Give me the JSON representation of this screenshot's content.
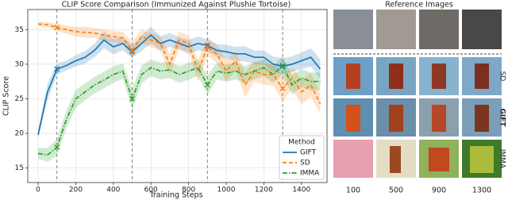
{
  "chart_data": {
    "type": "line",
    "title": "CLIP Score Comparison (Immunized Against Plushie Tortoise)",
    "x_label": "Training Steps",
    "y_label": "CLIP Score",
    "x": [
      0,
      50,
      100,
      150,
      200,
      250,
      300,
      350,
      400,
      450,
      500,
      550,
      600,
      650,
      700,
      750,
      800,
      850,
      900,
      950,
      1000,
      1050,
      1100,
      1150,
      1200,
      1250,
      1300,
      1350,
      1400,
      1450,
      1500
    ],
    "series": [
      {
        "name": "GIFT",
        "color": "#1f77b4",
        "dash": "solid",
        "values": [
          19.8,
          26,
          29.3,
          29.8,
          30.5,
          31,
          32,
          33.5,
          32.5,
          33,
          31.8,
          33,
          34.2,
          33,
          33.5,
          33,
          32.5,
          33,
          32.7,
          32,
          31.8,
          31.5,
          31.5,
          31,
          31,
          30,
          29.7,
          30,
          30.5,
          31,
          29.3
        ],
        "errors": [
          0.6,
          1.2,
          0.8,
          0.7,
          0.8,
          0.9,
          1.0,
          1.2,
          1.1,
          1.0,
          0.9,
          1.1,
          1.2,
          1.0,
          1.0,
          0.9,
          1.0,
          1.0,
          0.9,
          0.9,
          1.0,
          1.0,
          1.1,
          1.0,
          1.0,
          1.1,
          1.2,
          1.1,
          1.2,
          1.3,
          1.4
        ]
      },
      {
        "name": "SD",
        "color": "#ff7f0e",
        "dash": "dashed",
        "values": [
          35.8,
          35.7,
          35.3,
          35,
          34.7,
          34.6,
          34.5,
          34.2,
          34,
          33.8,
          32,
          34,
          33.5,
          33,
          30,
          33.5,
          33,
          29,
          32.5,
          31.5,
          29,
          30.5,
          27,
          29,
          28.5,
          28.5,
          26.5,
          28,
          26,
          27,
          24.3
        ],
        "errors": [
          0.3,
          0.4,
          0.5,
          0.6,
          0.7,
          0.8,
          0.7,
          0.8,
          0.8,
          0.9,
          1.2,
          1.0,
          1.0,
          1.1,
          1.5,
          1.2,
          1.2,
          1.6,
          1.3,
          1.3,
          1.6,
          1.4,
          1.8,
          1.5,
          1.5,
          1.6,
          1.8,
          1.6,
          1.8,
          1.7,
          1.5
        ]
      },
      {
        "name": "IMMA",
        "color": "#2ca02c",
        "dash": "dashdot",
        "values": [
          17.1,
          16.9,
          18,
          22,
          25,
          26,
          27,
          27.7,
          28.5,
          29,
          25,
          28.5,
          29.5,
          29,
          29.2,
          28.5,
          29,
          29.5,
          27,
          29,
          28.7,
          29,
          28.5,
          29,
          29.5,
          28.5,
          29.8,
          27,
          28,
          27.5,
          27.5
        ],
        "errors": [
          0.8,
          1.0,
          1.2,
          1.3,
          1.3,
          1.2,
          1.2,
          1.2,
          1.2,
          1.1,
          1.5,
          1.3,
          1.2,
          1.2,
          1.2,
          1.2,
          1.2,
          1.2,
          1.4,
          1.2,
          1.2,
          1.2,
          1.2,
          1.2,
          1.2,
          1.2,
          1.3,
          1.4,
          1.3,
          1.3,
          1.3
        ]
      }
    ],
    "vlines": [
      100,
      500,
      900,
      1300
    ],
    "xlim": [
      -55,
      1536
    ],
    "ylim": [
      12.9,
      37.9
    ],
    "xticks": [
      0,
      200,
      400,
      600,
      800,
      1000,
      1200,
      1400
    ],
    "yticks": [
      15,
      20,
      25,
      30,
      35
    ],
    "grid": true,
    "legend": "lower right",
    "legend_title": "Method"
  },
  "images": {
    "title": "Reference Images",
    "rows": [
      "SD",
      "GIFT",
      "IMMA"
    ],
    "columns": [
      "100",
      "500",
      "900",
      "1300"
    ]
  }
}
